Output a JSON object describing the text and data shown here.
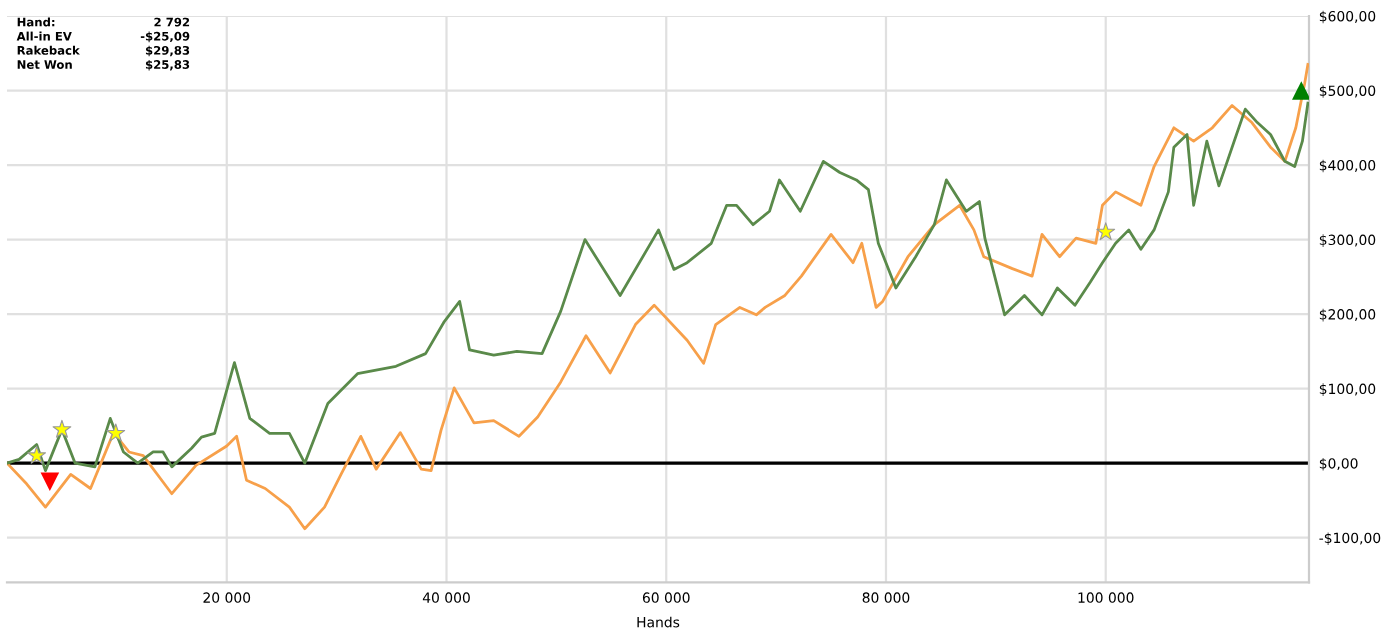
{
  "chart_data": {
    "type": "line",
    "xlabel": "Hands",
    "xlim": [
      0,
      118500
    ],
    "ylim": [
      -160,
      600
    ],
    "xticks": [
      {
        "value": 20000,
        "label": "20 000"
      },
      {
        "value": 40000,
        "label": "40 000"
      },
      {
        "value": 60000,
        "label": "60 000"
      },
      {
        "value": 80000,
        "label": "80 000"
      },
      {
        "value": 100000,
        "label": "100 000"
      }
    ],
    "yticks": [
      {
        "value": -100,
        "label": "-$100,00"
      },
      {
        "value": 0,
        "label": "$0,00"
      },
      {
        "value": 100,
        "label": "$100,00"
      },
      {
        "value": 200,
        "label": "$200,00"
      },
      {
        "value": 300,
        "label": "$300,00"
      },
      {
        "value": 400,
        "label": "$400,00"
      },
      {
        "value": 500,
        "label": "$500,00"
      },
      {
        "value": 600,
        "label": "$600,00"
      }
    ],
    "grid": true,
    "legend": false,
    "line_style": "solid",
    "ref_lines": [
      {
        "axis": "y",
        "value": 0,
        "color": "#000000"
      }
    ],
    "annotations": [
      "Hand:",
      "2 792",
      "All-in EV",
      "-$25,09",
      "Rakeback",
      "$29,83",
      "Net Won",
      "$25,83"
    ],
    "series": [
      {
        "color": "#f7a04a",
        "marker": "none",
        "x": [
          0,
          1800,
          3500,
          5800,
          7600,
          9700,
          11100,
          12400,
          15000,
          17200,
          20000,
          20900,
          21800,
          23500,
          25700,
          27100,
          28900,
          30400,
          32200,
          33600,
          35800,
          37700,
          38600,
          39500,
          40700,
          42500,
          44300,
          46600,
          48300,
          50400,
          52700,
          54900,
          57200,
          58900,
          61900,
          63400,
          64500,
          66700,
          68200,
          69000,
          70800,
          72300,
          75000,
          77000,
          77800,
          79100,
          79700,
          82000,
          84400,
          86700,
          88000,
          88900,
          91500,
          93300,
          94200,
          95800,
          97300,
          99100,
          99700,
          100900,
          103200,
          104400,
          106200,
          108000,
          109700,
          111500,
          113300,
          115000,
          116300,
          117300,
          118100,
          118400
        ],
        "values": [
          0,
          -28,
          -59,
          -15,
          -34,
          41,
          15,
          10,
          -41,
          -3,
          23,
          36,
          -23,
          -34,
          -59,
          -88,
          -59,
          -15,
          36,
          -8,
          41,
          -8,
          -10,
          44,
          101,
          54,
          57,
          36,
          62,
          109,
          171,
          121,
          186,
          212,
          165,
          134,
          186,
          209,
          199,
          209,
          225,
          251,
          307,
          269,
          295,
          209,
          217,
          277,
          320,
          346,
          313,
          277,
          261,
          251,
          307,
          277,
          302,
          295,
          346,
          364,
          346,
          398,
          450,
          432,
          450,
          480,
          457,
          424,
          405,
          450,
          509,
          535
        ]
      },
      {
        "color": "#5a8a4a",
        "marker": "none",
        "x": [
          0,
          1100,
          2700,
          3500,
          5000,
          6200,
          8000,
          9400,
          10600,
          11900,
          13300,
          14200,
          15000,
          16800,
          17700,
          18900,
          20700,
          22100,
          23900,
          25700,
          27100,
          29200,
          31900,
          35400,
          38100,
          39800,
          41200,
          42100,
          44300,
          46400,
          48700,
          50400,
          52600,
          55800,
          59300,
          60700,
          61900,
          64100,
          65500,
          66400,
          67900,
          69400,
          70300,
          72200,
          74300,
          75800,
          77300,
          78400,
          79300,
          80900,
          82700,
          84400,
          85500,
          87300,
          88500,
          89000,
          90800,
          92600,
          94200,
          95600,
          97200,
          98600,
          99700,
          100900,
          102100,
          103200,
          104400,
          105700,
          106200,
          107400,
          108000,
          109200,
          110300,
          111900,
          112700,
          113800,
          115000,
          116300,
          117200,
          117900,
          118400
        ],
        "values": [
          0,
          5,
          25,
          -10,
          45,
          0,
          -5,
          60,
          15,
          0,
          15,
          15,
          -5,
          20,
          35,
          40,
          135,
          60,
          40,
          40,
          0,
          80,
          120,
          130,
          147,
          190,
          217,
          152,
          145,
          150,
          147,
          204,
          300,
          225,
          313,
          260,
          269,
          295,
          346,
          346,
          320,
          338,
          380,
          338,
          405,
          390,
          380,
          367,
          295,
          235,
          277,
          320,
          380,
          338,
          351,
          302,
          199,
          225,
          199,
          235,
          212,
          243,
          269,
          295,
          313,
          287,
          313,
          364,
          424,
          441,
          346,
          432,
          372,
          441,
          475,
          457,
          441,
          405,
          398,
          432,
          483
        ]
      },
      {
        "type": "scatter",
        "color": "#ffff00",
        "marker": "star",
        "x": [
          2700,
          5000,
          9900,
          100000
        ],
        "values": [
          10,
          45,
          40,
          310
        ]
      },
      {
        "type": "scatter",
        "color": "#ff0000",
        "marker": "triangle_down",
        "x": [
          3900
        ],
        "values": [
          -25
        ]
      },
      {
        "type": "scatter",
        "color": "#008000",
        "marker": "triangle",
        "x": [
          117800
        ],
        "values": [
          500
        ]
      }
    ]
  }
}
